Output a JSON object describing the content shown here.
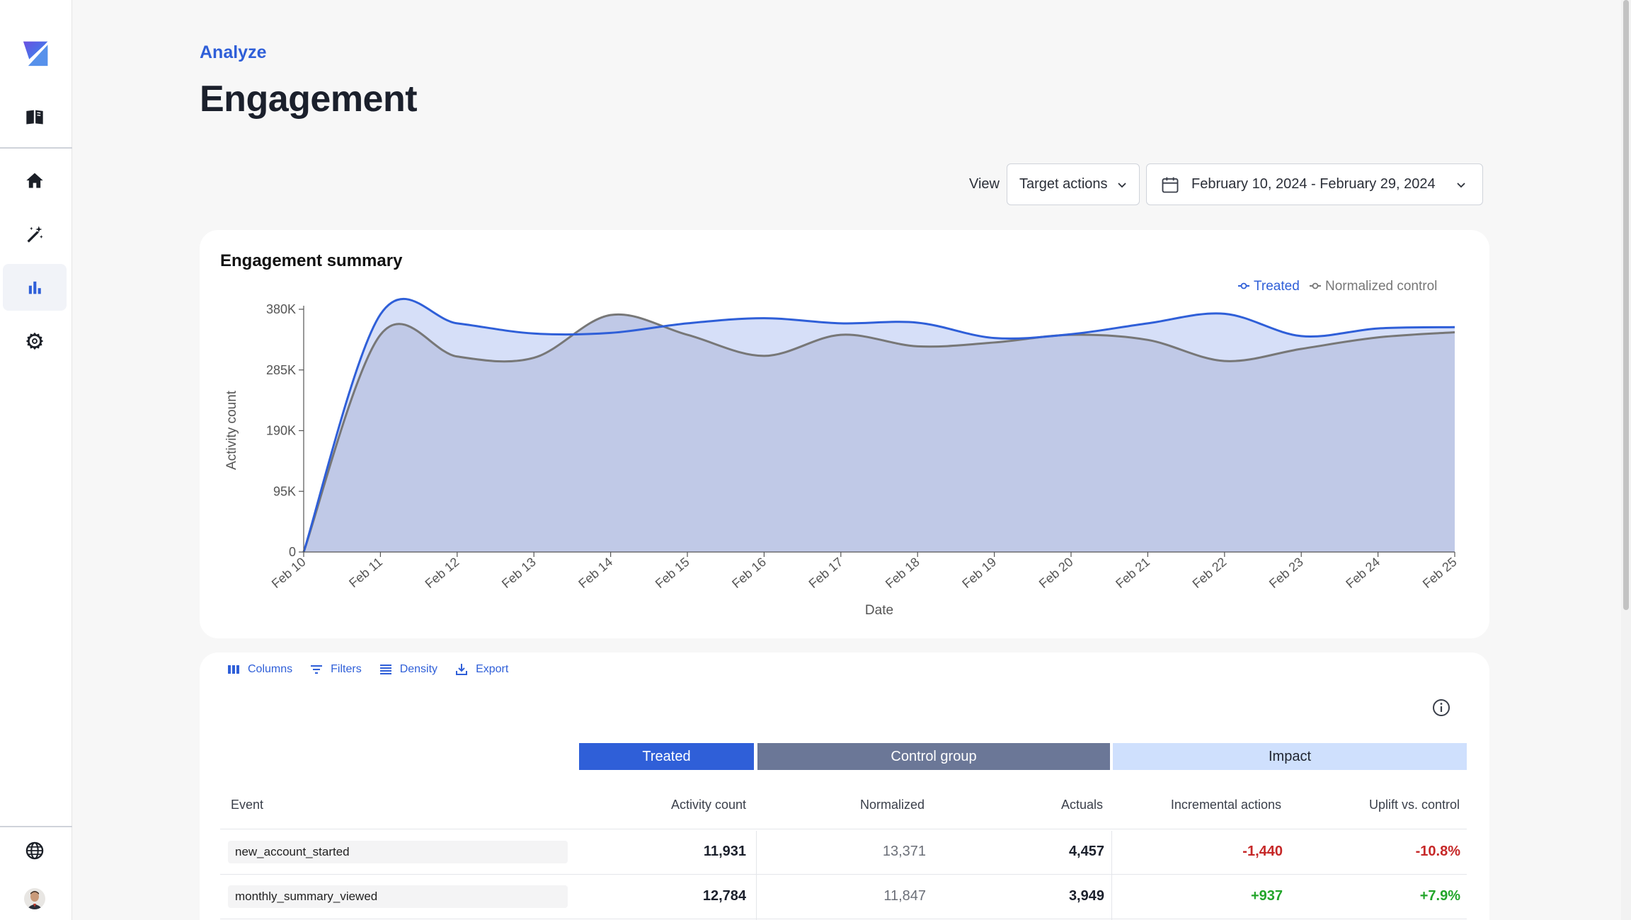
{
  "app": {
    "section": "Analyze",
    "title": "Engagement"
  },
  "sidebar": {
    "items": [
      {
        "icon": "logo-icon"
      },
      {
        "icon": "book-icon"
      },
      {
        "icon": "home-icon"
      },
      {
        "icon": "magic-wand-icon"
      },
      {
        "icon": "bar-chart-icon",
        "active": true
      },
      {
        "icon": "gear-icon"
      },
      {
        "icon": "globe-icon"
      },
      {
        "icon": "avatar"
      }
    ]
  },
  "controls": {
    "view_label": "View",
    "view_value": "Target actions",
    "date_range": "February 10, 2024 - February 29, 2024"
  },
  "chart_data": {
    "type": "area",
    "title": "Engagement summary",
    "xlabel": "Date",
    "ylabel": "Activity count",
    "x": [
      "Feb 10",
      "Feb 11",
      "Feb 12",
      "Feb 13",
      "Feb 14",
      "Feb 15",
      "Feb 16",
      "Feb 17",
      "Feb 18",
      "Feb 19",
      "Feb 20",
      "Feb 21",
      "Feb 22",
      "Feb 23",
      "Feb 24",
      "Feb 25"
    ],
    "y_ticks": [
      "0",
      "95K",
      "190K",
      "285K",
      "380K"
    ],
    "ylim": [
      0,
      380000
    ],
    "legend_position": "top-right",
    "series": [
      {
        "name": "Treated",
        "color": "#2f5fd8",
        "values": [
          0,
          372000,
          358000,
          342000,
          343000,
          358000,
          366000,
          358000,
          359000,
          335000,
          341000,
          358000,
          373000,
          338000,
          350000,
          352000
        ]
      },
      {
        "name": "Normalized control",
        "color": "#777777",
        "values": [
          0,
          340000,
          306000,
          304000,
          371000,
          340000,
          307000,
          340000,
          322000,
          328000,
          340000,
          332000,
          299000,
          318000,
          336000,
          344000
        ]
      }
    ]
  },
  "table": {
    "toolbar": [
      "Columns",
      "Filters",
      "Density",
      "Export"
    ],
    "groups": {
      "treated": "Treated",
      "control": "Control group",
      "impact": "Impact"
    },
    "columns": [
      "Event",
      "Activity count",
      "Normalized",
      "Actuals",
      "Incremental actions",
      "Uplift vs. control"
    ],
    "rows": [
      {
        "event": "new_account_started",
        "activity": "11,931",
        "normalized": "13,371",
        "actuals": "4,457",
        "incremental": "-1,440",
        "uplift": "-10.8%",
        "trend": "neg"
      },
      {
        "event": "monthly_summary_viewed",
        "activity": "12,784",
        "normalized": "11,847",
        "actuals": "3,949",
        "incremental": "+937",
        "uplift": "+7.9%",
        "trend": "pos"
      }
    ]
  },
  "colors": {
    "accent": "#2f5fd8",
    "treated_fill": "#c0c9e7",
    "treated_band": "#d6dff8",
    "negative": "#c62828",
    "positive": "#22a52a"
  }
}
